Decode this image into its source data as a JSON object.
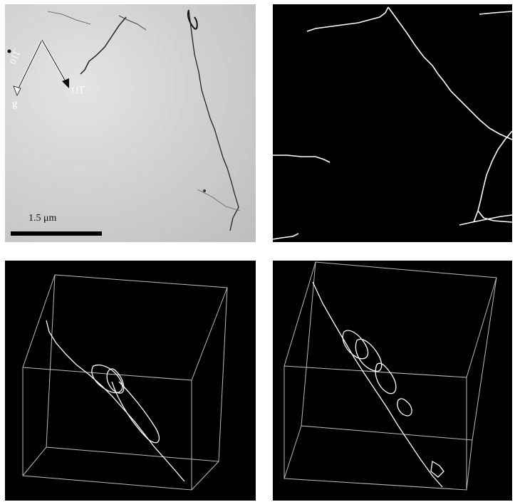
{
  "tem_image": {
    "scale_bar_label": "1.5 μm",
    "vector_g": "g",
    "direction_1": "01̅1̅",
    "direction_2": "11̅1̅"
  },
  "colors": {
    "background": "#ffffff",
    "panel_background": "#000000",
    "trace_line": "#ffffff",
    "micrograph_gray": "#cfcfcf"
  }
}
